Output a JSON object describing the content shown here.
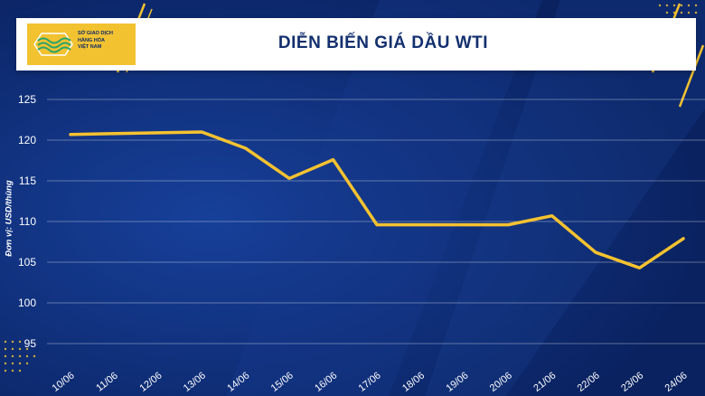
{
  "header": {
    "title": "DIỄN BIẾN GIÁ DẦU WTI",
    "logo_lines": [
      "SỞ GIAO DỊCH",
      "HÀNG HÓA",
      "VIỆT NAM"
    ]
  },
  "colors": {
    "background": "#0d2a6b",
    "line": "#f5c230",
    "accent": "#f2c230",
    "grid": "#ffffff"
  },
  "chart_data": {
    "type": "line",
    "title": "DIỄN BIẾN GIÁ DẦU WTI",
    "xlabel": "",
    "ylabel": "Đơn vị: USD/thùng",
    "categories": [
      "10/06",
      "11/06",
      "12/06",
      "13/06",
      "14/06",
      "15/06",
      "16/06",
      "17/06",
      "18/06",
      "19/06",
      "20/06",
      "21/06",
      "22/06",
      "23/06",
      "24/06"
    ],
    "series": [
      {
        "values": [
          120.7,
          120.8,
          120.9,
          121.0,
          119.0,
          115.3,
          117.6,
          109.6,
          109.6,
          109.6,
          109.6,
          110.7,
          106.2,
          104.3,
          107.9
        ]
      }
    ],
    "yticks": [
      95,
      100,
      105,
      110,
      115,
      120,
      125
    ],
    "ylim": [
      95,
      125
    ],
    "grid": true,
    "legend": "none"
  }
}
